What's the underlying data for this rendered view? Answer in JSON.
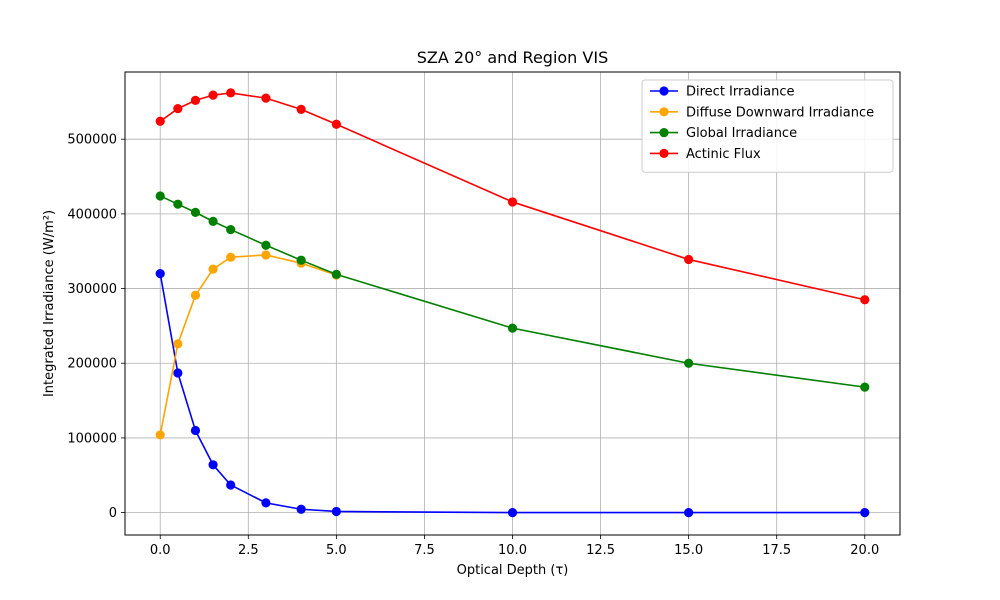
{
  "chart_data": {
    "type": "line",
    "title": "SZA 20° and Region VIS",
    "xlabel": "Optical Depth (τ)",
    "ylabel": "Integrated Irradiance (W/m²)",
    "xlim": [
      -1,
      21
    ],
    "ylim": [
      -30000,
      590000
    ],
    "x_ticks": [
      0,
      2.5,
      5,
      7.5,
      10,
      12.5,
      15,
      17.5,
      20
    ],
    "x_tick_labels": [
      "0.0",
      "2.5",
      "5.0",
      "7.5",
      "10.0",
      "12.5",
      "15.0",
      "17.5",
      "20.0"
    ],
    "y_ticks": [
      0,
      100000,
      200000,
      300000,
      400000,
      500000
    ],
    "y_tick_labels": [
      "0",
      "100000",
      "200000",
      "300000",
      "400000",
      "500000"
    ],
    "grid": true,
    "legend_position": "top-right",
    "x": [
      0,
      0.5,
      1,
      1.5,
      2,
      3,
      4,
      5,
      10,
      15,
      20
    ],
    "series": [
      {
        "name": "Direct Irradiance",
        "color": "#0000ff",
        "values": [
          320000,
          187000,
          110000,
          64000,
          37000,
          13000,
          4500,
          1500,
          0,
          0,
          0
        ]
      },
      {
        "name": "Diffuse Downward Irradiance",
        "color": "#ffa500",
        "values": [
          104000,
          226000,
          291000,
          326000,
          342000,
          345000,
          334000,
          318000,
          null,
          null,
          null
        ]
      },
      {
        "name": "Global Irradiance",
        "color": "#008000",
        "values": [
          424000,
          413000,
          402000,
          390000,
          379000,
          358000,
          338000,
          319000,
          247000,
          200000,
          168000
        ]
      },
      {
        "name": "Actinic Flux",
        "color": "#ff0000",
        "values": [
          524000,
          541000,
          552000,
          559000,
          562000,
          555000,
          540000,
          520000,
          416000,
          339000,
          285000
        ]
      }
    ]
  }
}
